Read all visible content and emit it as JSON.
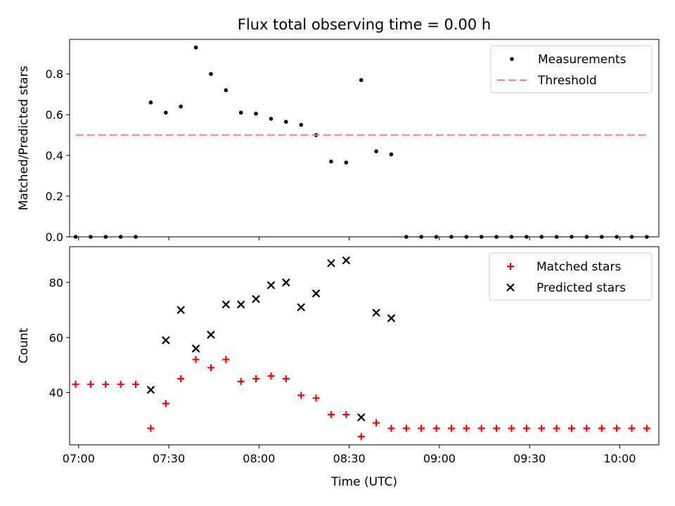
{
  "chart_data": [
    {
      "type": "scatter",
      "title": "Flux total observing time = 0.00 h",
      "xlabel": "",
      "ylabel": "Matched/Predicted stars",
      "xlim": [
        -6,
        386
      ],
      "ylim": [
        0,
        0.97
      ],
      "yticks": [
        0.0,
        0.2,
        0.4,
        0.6,
        0.8
      ],
      "ytick_labels": [
        "0.0",
        "0.2",
        "0.4",
        "0.6",
        "0.8"
      ],
      "legend": "top-right",
      "series": [
        {
          "name": "Measurements",
          "color": "#000000",
          "marker": "dot",
          "x": [
            -2,
            8,
            18,
            28,
            38,
            48,
            58,
            68,
            78,
            88,
            98,
            108,
            118,
            128,
            138,
            148,
            158,
            168,
            178,
            188,
            198,
            208,
            218,
            228,
            238,
            248,
            258,
            268,
            278,
            288,
            298,
            308,
            318,
            328,
            338,
            348,
            358,
            368,
            378
          ],
          "y": [
            0,
            0,
            0,
            0,
            0,
            0.66,
            0.61,
            0.64,
            0.93,
            0.8,
            0.72,
            0.61,
            0.605,
            0.58,
            0.565,
            0.55,
            0.5,
            0.37,
            0.365,
            0.77,
            0.42,
            0.405,
            0,
            0,
            0,
            0,
            0,
            0,
            0,
            0,
            0,
            0,
            0,
            0,
            0,
            0,
            0,
            0,
            0
          ]
        },
        {
          "name": "Threshold",
          "color": "#ff7f7f",
          "style": "dashed",
          "x": [
            -2,
            378
          ],
          "y": [
            0.5,
            0.5
          ]
        }
      ]
    },
    {
      "type": "scatter",
      "title": "",
      "xlabel": "Time (UTC)",
      "ylabel": "Count",
      "xlim": [
        -6,
        386
      ],
      "ylim": [
        21,
        93
      ],
      "yticks": [
        40,
        60,
        80
      ],
      "ytick_labels": [
        "40",
        "60",
        "80"
      ],
      "xticks": [
        0,
        60,
        120,
        180,
        240,
        300,
        360
      ],
      "xtick_labels": [
        "07:00",
        "07:30",
        "08:00",
        "08:30",
        "09:00",
        "09:30",
        "10:00"
      ],
      "legend": "top-right",
      "series": [
        {
          "name": "Matched stars",
          "color": "#ff0000",
          "marker": "plus",
          "x": [
            -2,
            8,
            18,
            28,
            38,
            48,
            58,
            68,
            78,
            88,
            98,
            108,
            118,
            128,
            138,
            148,
            158,
            168,
            178,
            188,
            198,
            208,
            218,
            228,
            238,
            248,
            258,
            268,
            278,
            288,
            298,
            308,
            318,
            328,
            338,
            348,
            358,
            368,
            378
          ],
          "y": [
            43,
            43,
            43,
            43,
            43,
            27,
            36,
            45,
            52,
            49,
            52,
            44,
            45,
            46,
            45,
            39,
            38,
            32,
            32,
            24,
            29,
            27,
            27,
            27,
            27,
            27,
            27,
            27,
            27,
            27,
            27,
            27,
            27,
            27,
            27,
            27,
            27,
            27,
            27
          ]
        },
        {
          "name": "Predicted stars",
          "color": "#000000",
          "marker": "x",
          "x": [
            48,
            58,
            68,
            78,
            88,
            98,
            108,
            118,
            128,
            138,
            148,
            158,
            168,
            178,
            188,
            198,
            208
          ],
          "y": [
            41,
            59,
            70,
            56,
            61,
            72,
            72,
            74,
            79,
            80,
            71,
            76,
            87,
            88,
            31,
            69,
            67
          ]
        }
      ]
    }
  ]
}
